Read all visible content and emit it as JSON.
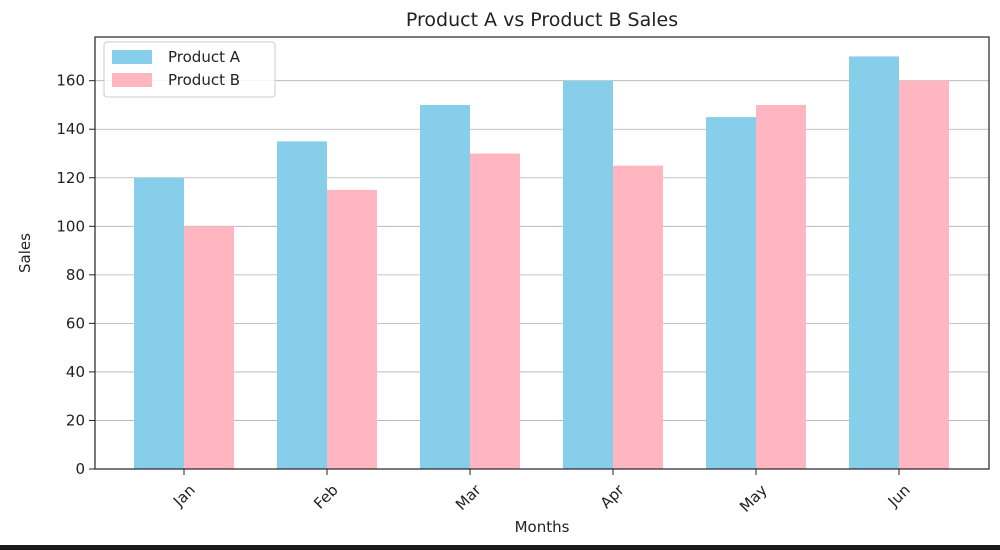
{
  "chart_data": {
    "type": "bar",
    "title": "Product A vs Product B Sales",
    "xlabel": "Months",
    "ylabel": "Sales",
    "categories": [
      "Jan",
      "Feb",
      "Mar",
      "Apr",
      "May",
      "Jun"
    ],
    "series": [
      {
        "name": "Product A",
        "color": "#87CEEB",
        "values": [
          120,
          135,
          150,
          160,
          145,
          170
        ]
      },
      {
        "name": "Product B",
        "color": "#FFB6C1",
        "values": [
          100,
          115,
          130,
          125,
          150,
          160
        ]
      }
    ],
    "ylim": [
      0,
      178
    ],
    "yticks": [
      0,
      20,
      40,
      60,
      80,
      100,
      120,
      140,
      160
    ],
    "grid": "y",
    "legend_position": "top-left",
    "xtick_rotation": "45 degrees"
  }
}
